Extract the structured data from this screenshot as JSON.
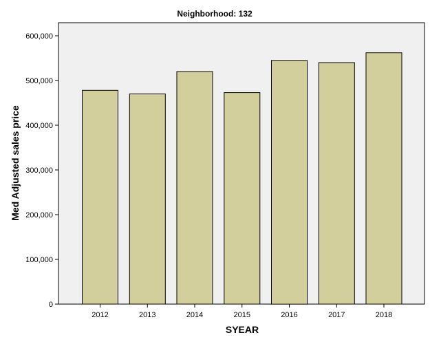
{
  "chart_data": {
    "type": "bar",
    "title": "Neighborhood: 132",
    "xlabel": "SYEAR",
    "ylabel": "Med Adjusted sales price",
    "categories": [
      "2012",
      "2013",
      "2014",
      "2015",
      "2016",
      "2017",
      "2018"
    ],
    "values": [
      478000,
      470000,
      520000,
      473000,
      545000,
      540000,
      562000
    ],
    "ylim": [
      0,
      630000
    ],
    "yticks": [
      0,
      100000,
      200000,
      300000,
      400000,
      500000,
      600000
    ],
    "ytick_labels": [
      "0",
      "100,000",
      "200,000",
      "300,000",
      "400,000",
      "500,000",
      "600,000"
    ],
    "grid": false,
    "legend": "none",
    "colors": {
      "bar_fill": "#d3cf9c",
      "plot_background": "#f0f0f0"
    }
  }
}
